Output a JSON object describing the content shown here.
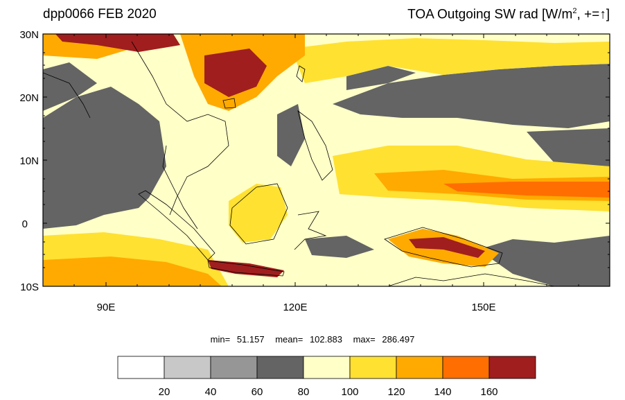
{
  "header": {
    "left_title": "dpp0066 FEB 2020",
    "right_title_prefix": "TOA Outgoing SW rad [W/m",
    "right_title_sup": "2",
    "right_title_suffix": ", +=",
    "right_title_arrow": "↑",
    "right_title_close": "]"
  },
  "map": {
    "lat_labels": [
      "30N",
      "20N",
      "10N",
      "0",
      "10S"
    ],
    "lon_labels": [
      "90E",
      "120E",
      "150E"
    ],
    "lon_range": [
      80,
      170
    ],
    "lat_range": [
      -10,
      30
    ]
  },
  "stats": {
    "min_label": "min=",
    "min_value": "51.157",
    "mean_label": "mean=",
    "mean_value": "102.883",
    "max_label": "max=",
    "max_value": "286.497"
  },
  "colorbar": {
    "colors": [
      "#ffffff",
      "#c8c8c8",
      "#969696",
      "#646464",
      "#ffffc8",
      "#ffe132",
      "#ffaa00",
      "#ff6e00",
      "#a01e1e"
    ],
    "labels": [
      "20",
      "40",
      "60",
      "80",
      "100",
      "120",
      "140",
      "160"
    ]
  }
}
